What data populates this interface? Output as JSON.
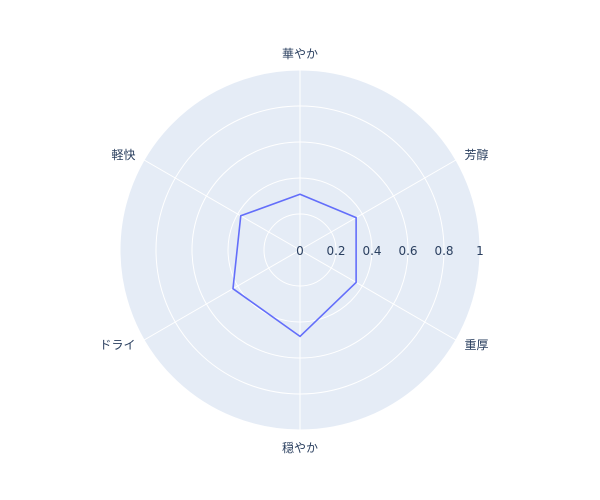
{
  "chart_data": {
    "type": "radar",
    "axes": [
      "華やか",
      "芳醇",
      "重厚",
      "穏やか",
      "ドライ",
      "軽快"
    ],
    "series": [
      {
        "values": [
          0.31,
          0.36,
          0.36,
          0.48,
          0.43,
          0.38
        ]
      }
    ],
    "radial_range": [
      0,
      1
    ],
    "radial_ticks": [
      "0",
      "0.2",
      "0.4",
      "0.6",
      "0.8",
      "1"
    ],
    "grid": true,
    "colors": {
      "background": "#e5ecf6",
      "grid": "#ffffff",
      "series": "#636efa",
      "text": "#2a3f5f"
    }
  }
}
